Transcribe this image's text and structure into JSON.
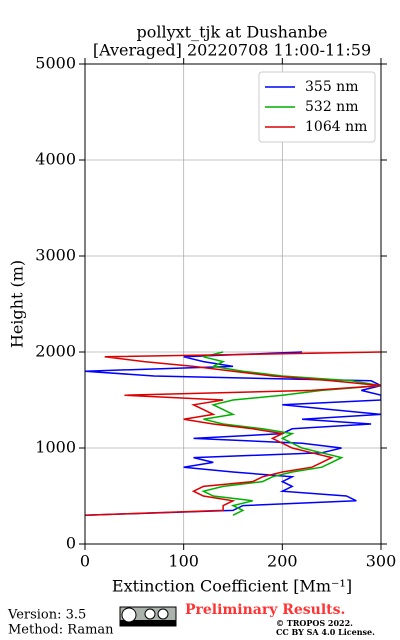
{
  "chart_data": {
    "type": "line",
    "title": "pollyxt_tjk at Dushanbe",
    "subtitle": "[Averaged] 20220708 11:00-11:59",
    "xlabel": "Extinction Coefficient [Mm⁻¹]",
    "ylabel": "Height (m)",
    "xlim": [
      0,
      300
    ],
    "xticks": [
      0,
      100,
      200,
      300
    ],
    "ylim": [
      0,
      5000
    ],
    "yticks": [
      0,
      1000,
      2000,
      3000,
      4000,
      5000
    ],
    "grid": true,
    "legend": "upper right",
    "y": [
      300,
      350,
      400,
      450,
      500,
      550,
      600,
      650,
      700,
      750,
      800,
      850,
      900,
      950,
      1000,
      1050,
      1100,
      1150,
      1200,
      1250,
      1300,
      1350,
      1400,
      1450,
      1500,
      1550,
      1600,
      1650,
      1700,
      1750,
      1800,
      1850,
      1900,
      1950,
      2000
    ],
    "series": [
      {
        "name": "355 nm",
        "color": "#0000ff",
        "values": [
          0,
          150,
          160,
          275,
          265,
          200,
          210,
          200,
          210,
          150,
          100,
          130,
          110,
          240,
          260,
          220,
          110,
          200,
          210,
          290,
          220,
          300,
          250,
          200,
          300,
          300,
          280,
          300,
          290,
          70,
          0,
          150,
          120,
          100,
          220
        ]
      },
      {
        "name": "532 nm",
        "color": "#00b000",
        "values": [
          150,
          160,
          150,
          170,
          130,
          120,
          140,
          180,
          190,
          210,
          240,
          250,
          260,
          240,
          220,
          210,
          200,
          210,
          180,
          140,
          120,
          150,
          140,
          130,
          150,
          200,
          240,
          300,
          270,
          200,
          160,
          130,
          140,
          120,
          140
        ]
      },
      {
        "name": "1064 nm",
        "color": "#dd0000",
        "values": [
          0,
          140,
          140,
          150,
          120,
          110,
          120,
          170,
          180,
          200,
          230,
          240,
          250,
          230,
          210,
          200,
          190,
          200,
          170,
          130,
          100,
          130,
          120,
          110,
          140,
          40,
          230,
          300,
          250,
          190,
          150,
          110,
          60,
          20,
          300
        ]
      }
    ]
  },
  "footer": {
    "version": "Version: 3.5",
    "method": "Method: Raman",
    "status": "Preliminary Results.",
    "copyright": "© TROPOS 2022.",
    "license": "CC BY SA 4.0 License."
  }
}
